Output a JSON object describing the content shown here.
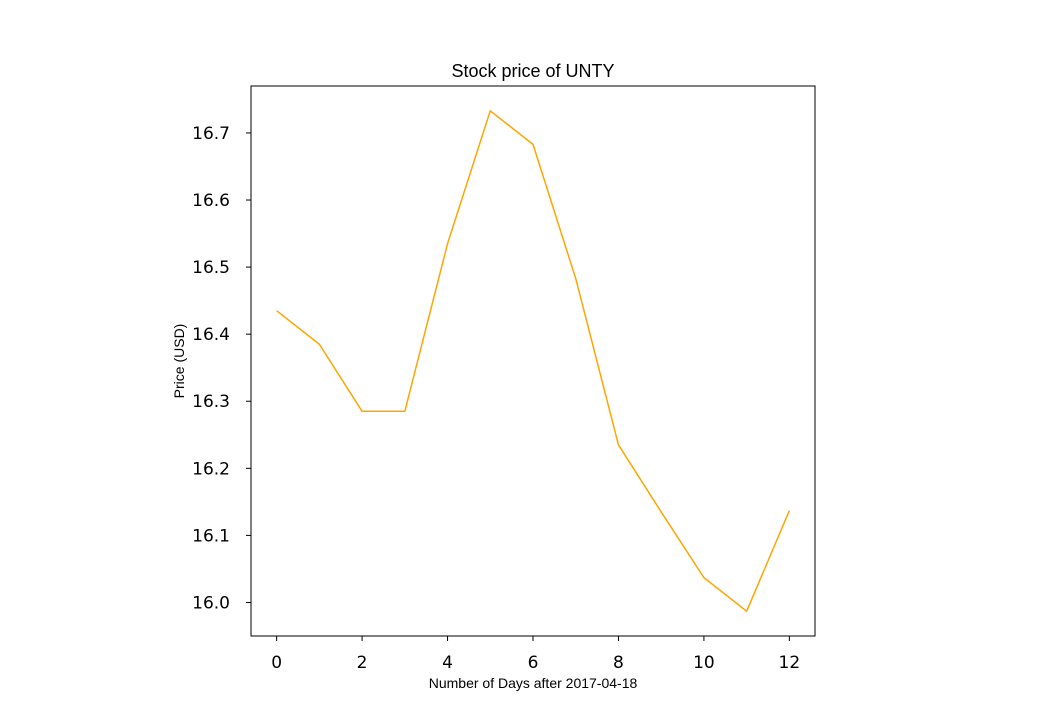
{
  "chart_data": {
    "type": "line",
    "title": "Stock price of UNTY",
    "xlabel": "Number of Days after 2017-04-18",
    "ylabel": "Price (USD)",
    "xlim": [
      -0.6,
      12.6
    ],
    "ylim": [
      15.95,
      16.77
    ],
    "x_ticks": [
      0,
      2,
      4,
      6,
      8,
      10,
      12
    ],
    "x_tick_labels": [
      "0",
      "2",
      "4",
      "6",
      "8",
      "10",
      "12"
    ],
    "y_ticks": [
      16.0,
      16.1,
      16.2,
      16.3,
      16.4,
      16.5,
      16.6,
      16.7
    ],
    "y_tick_labels": [
      "16.0",
      "16.1",
      "16.2",
      "16.3",
      "16.4",
      "16.5",
      "16.6",
      "16.7"
    ],
    "grid": false,
    "series": [
      {
        "color": "#FFA500",
        "x": [
          0,
          1,
          2,
          3,
          4,
          5,
          6,
          7,
          8,
          9,
          10,
          11,
          12
        ],
        "y": [
          16.435,
          16.385,
          16.285,
          16.285,
          16.535,
          16.733,
          16.683,
          16.483,
          16.235,
          16.135,
          16.037,
          15.987,
          16.137
        ]
      }
    ]
  }
}
